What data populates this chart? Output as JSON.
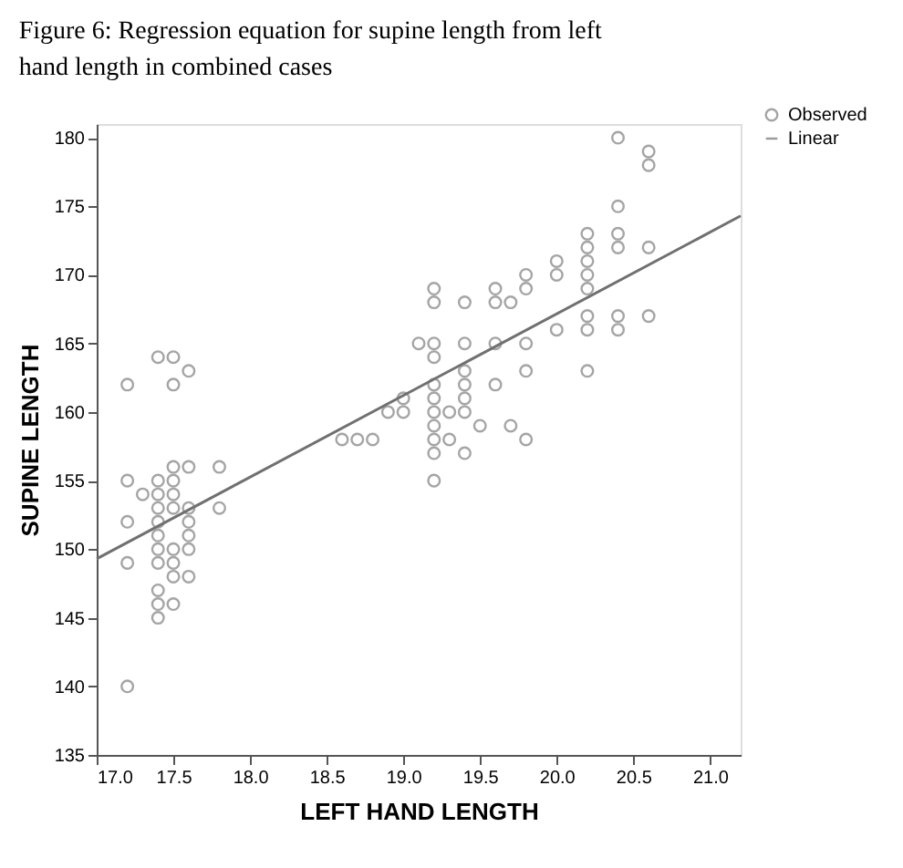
{
  "chart_data": {
    "type": "scatter",
    "title": "Figure 6: Regression equation for supine length from left hand length in combined cases",
    "xlabel": "LEFT HAND LENGTH",
    "ylabel": "SUPINE LENGTH",
    "xlim": [
      17.0,
      21.2
    ],
    "ylim": [
      135,
      181
    ],
    "xticks": [
      {
        "value": 17.0,
        "label": "17.0"
      },
      {
        "value": 17.5,
        "label": "17.5"
      },
      {
        "value": 18.0,
        "label": "18.0"
      },
      {
        "value": 18.5,
        "label": "18.5"
      },
      {
        "value": 19.0,
        "label": "19.0"
      },
      {
        "value": 19.5,
        "label": "19.5"
      },
      {
        "value": 20.0,
        "label": "20.0"
      },
      {
        "value": 20.5,
        "label": "20.5"
      },
      {
        "value": 21.0,
        "label": "21.0"
      }
    ],
    "yticks": [
      135,
      140,
      145,
      150,
      155,
      160,
      165,
      170,
      175,
      180
    ],
    "grid": false,
    "legend": "top right",
    "series": [
      {
        "name": "Observed",
        "type": "scatter",
        "marker": "circle",
        "color": "#7f7f7f",
        "x": [
          17.2,
          17.2,
          17.2,
          17.2,
          17.2,
          17.3,
          17.4,
          17.4,
          17.4,
          17.4,
          17.4,
          17.4,
          17.4,
          17.4,
          17.4,
          17.4,
          17.4,
          17.5,
          17.5,
          17.5,
          17.5,
          17.5,
          17.5,
          17.5,
          17.5,
          17.5,
          17.5,
          17.6,
          17.6,
          17.6,
          17.6,
          17.6,
          17.6,
          17.6,
          17.8,
          17.8,
          18.6,
          18.7,
          18.8,
          18.9,
          19.0,
          19.0,
          19.1,
          19.2,
          19.2,
          19.2,
          19.2,
          19.2,
          19.2,
          19.2,
          19.2,
          19.2,
          19.2,
          19.2,
          19.3,
          19.3,
          19.4,
          19.4,
          19.4,
          19.4,
          19.4,
          19.4,
          19.4,
          19.5,
          19.6,
          19.6,
          19.6,
          19.6,
          19.7,
          19.7,
          19.8,
          19.8,
          19.8,
          19.8,
          19.8,
          20.0,
          20.0,
          20.0,
          20.2,
          20.2,
          20.2,
          20.2,
          20.2,
          20.2,
          20.2,
          20.2,
          20.4,
          20.4,
          20.4,
          20.4,
          20.4,
          20.4,
          20.6,
          20.6,
          20.6,
          20.6
        ],
        "values": [
          162,
          155,
          152,
          149,
          140,
          154,
          164,
          155,
          154,
          153,
          152,
          151,
          150,
          149,
          147,
          146,
          145,
          164,
          162,
          156,
          155,
          154,
          153,
          150,
          149,
          148,
          146,
          163,
          156,
          153,
          152,
          151,
          150,
          148,
          156,
          153,
          158,
          158,
          158,
          160,
          161,
          160,
          165,
          169,
          168,
          165,
          164,
          162,
          161,
          160,
          159,
          158,
          157,
          155,
          160,
          158,
          168,
          165,
          163,
          162,
          161,
          160,
          157,
          159,
          169,
          168,
          165,
          162,
          168,
          159,
          170,
          169,
          165,
          163,
          158,
          171,
          170,
          166,
          173,
          172,
          171,
          170,
          169,
          167,
          166,
          163,
          180,
          175,
          173,
          172,
          167,
          166,
          179,
          178,
          172,
          167
        ]
      },
      {
        "name": "Linear",
        "type": "line",
        "color": "#707070",
        "x": [
          17.0,
          21.2
        ],
        "values": [
          149.3,
          174.3
        ]
      }
    ]
  }
}
